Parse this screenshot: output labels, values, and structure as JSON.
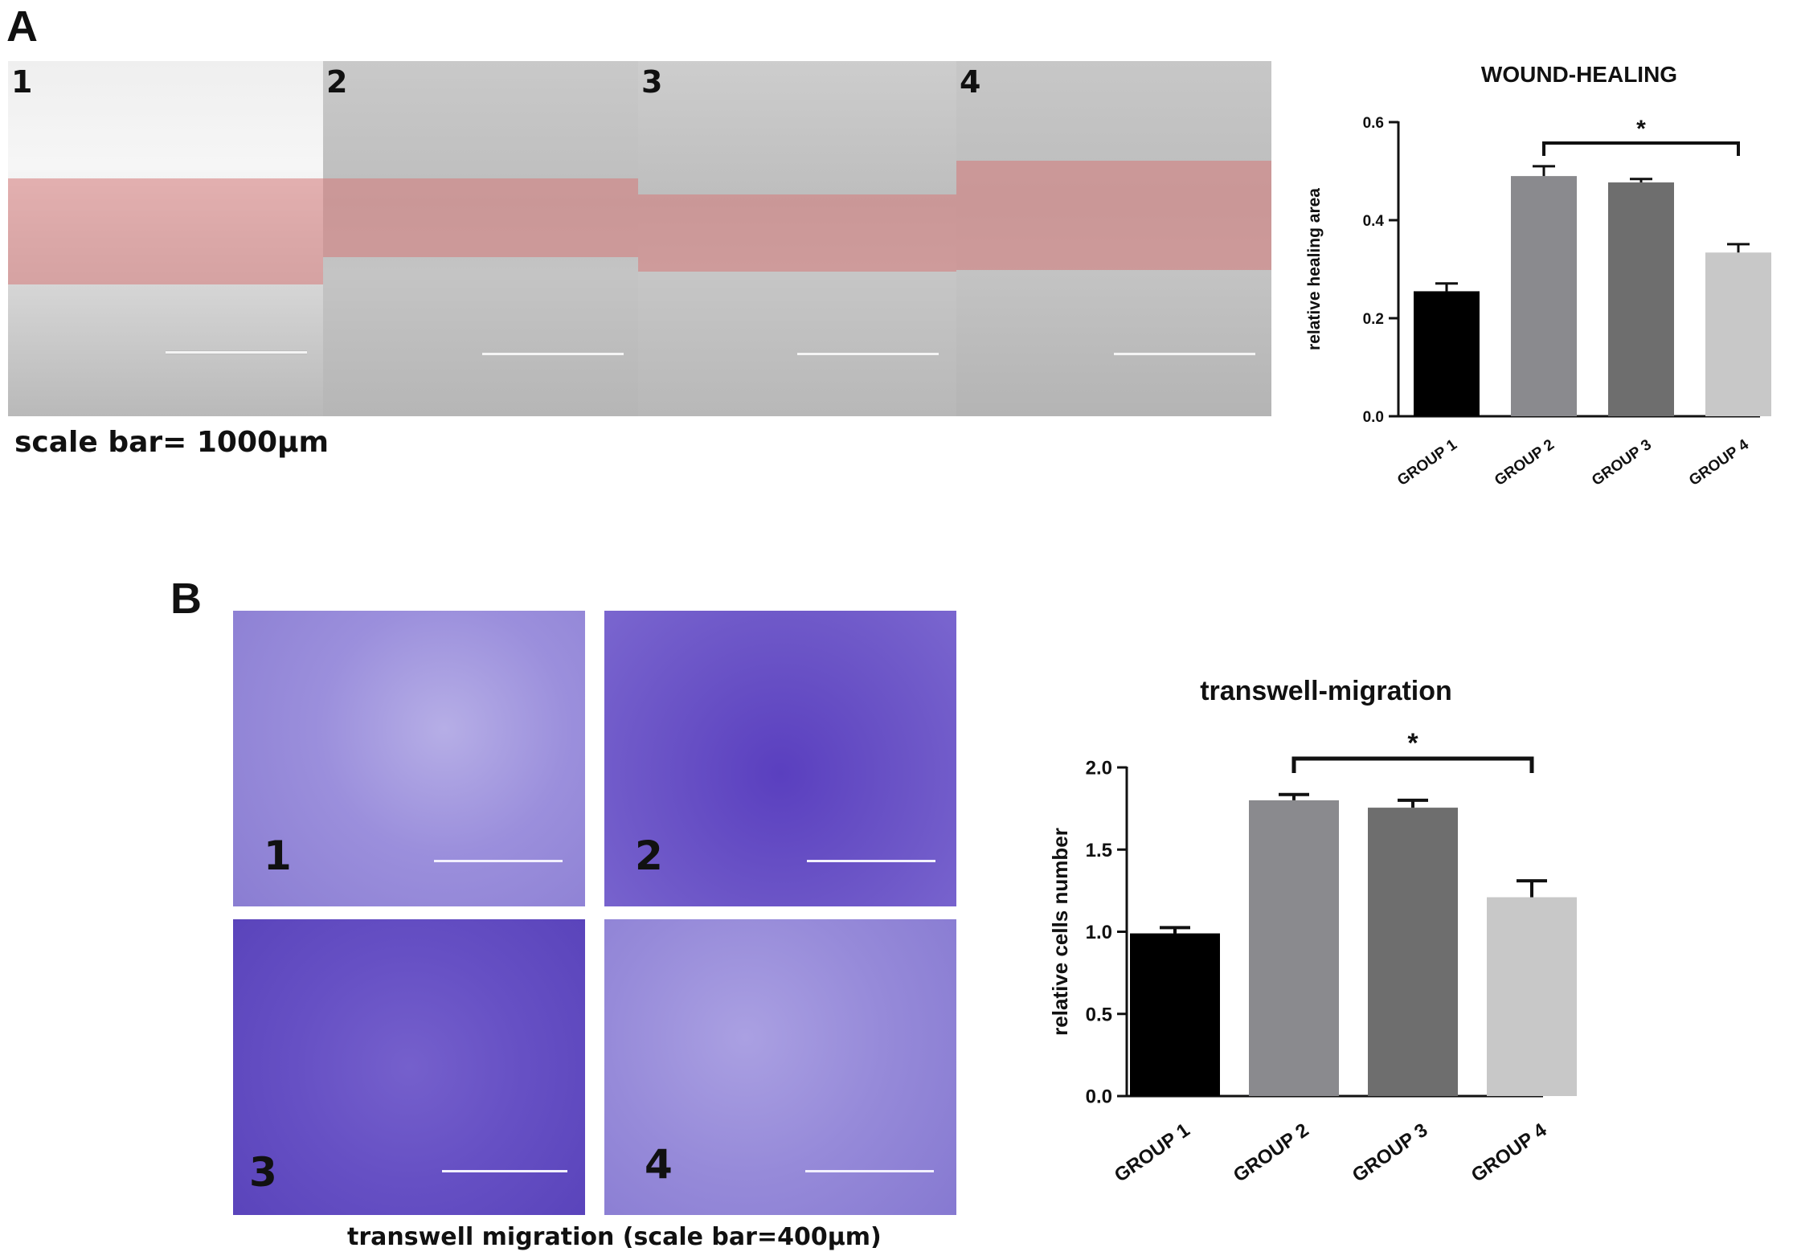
{
  "panel_a": {
    "letter": "A",
    "image_labels": [
      "1",
      "2",
      "3",
      "4"
    ],
    "scale_caption": "scale bar= 1000μm"
  },
  "panel_b": {
    "letter": "B",
    "image_labels": [
      "1",
      "2",
      "3",
      "4"
    ],
    "scale_caption": "transwell migration  (scale bar=400μm)"
  },
  "colors": {
    "group1": "#000000",
    "group2": "#8a8a8e",
    "group3": "#6e6e6e",
    "group4": "#c8c8c8",
    "scratch_band": "#d67878",
    "crystal_violet": "#6a55c8"
  },
  "chart_data": [
    {
      "type": "bar",
      "title": "WOUND-HEALING",
      "xlabel": "",
      "ylabel": "relative healing area",
      "categories": [
        "GROUP 1",
        "GROUP 2",
        "GROUP 3",
        "GROUP 4"
      ],
      "values": [
        0.255,
        0.49,
        0.477,
        0.334
      ],
      "errors": [
        0.016,
        0.02,
        0.007,
        0.017
      ],
      "ylim": [
        0,
        0.6
      ],
      "yticks": [
        "0.0",
        "0.2",
        "0.4",
        "0.6"
      ],
      "significance": {
        "from": "GROUP 2",
        "to": "GROUP 4",
        "label": "*"
      },
      "grid": false
    },
    {
      "type": "bar",
      "title": "transwell-migration",
      "xlabel": "",
      "ylabel": "relative cells number",
      "categories": [
        "GROUP 1",
        "GROUP 2",
        "GROUP 3",
        "GROUP 4"
      ],
      "values": [
        0.99,
        1.8,
        1.755,
        1.21
      ],
      "errors": [
        0.035,
        0.035,
        0.045,
        0.1
      ],
      "ylim": [
        0,
        2.0
      ],
      "yticks": [
        "0.0",
        "0.5",
        "1.0",
        "1.5",
        "2.0"
      ],
      "significance": {
        "from": "GROUP 2",
        "to": "GROUP 4",
        "label": "*"
      },
      "grid": false
    }
  ]
}
